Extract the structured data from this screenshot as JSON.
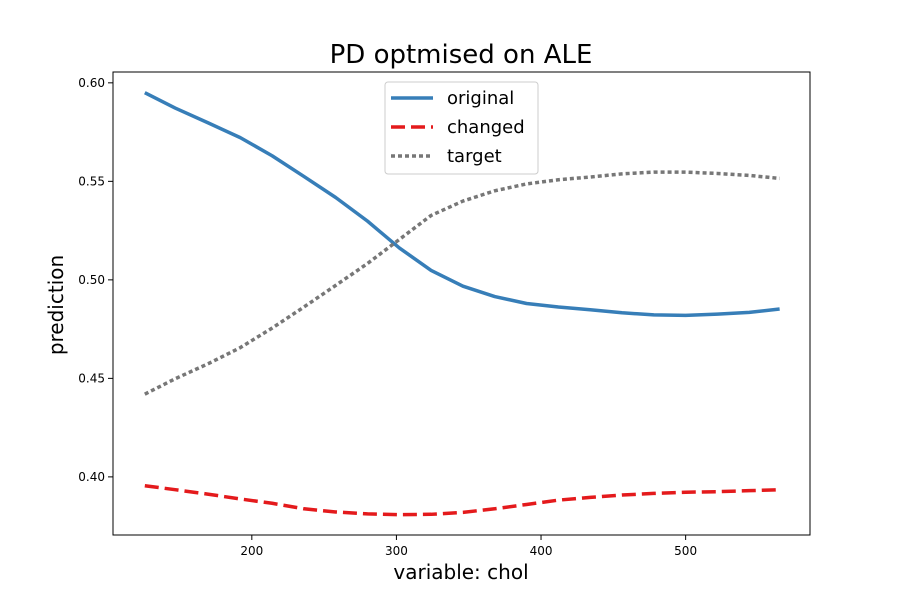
{
  "chart_data": {
    "type": "line",
    "title": "PD optmised on ALE",
    "xlabel": "variable: chol",
    "ylabel": "prediction",
    "xlim": [
      104,
      586
    ],
    "ylim": [
      0.3705,
      0.6055
    ],
    "xticks": [
      200,
      300,
      400,
      500
    ],
    "yticks": [
      0.4,
      0.45,
      0.5,
      0.55,
      0.6
    ],
    "xtick_labels": [
      "200",
      "300",
      "400",
      "500"
    ],
    "ytick_labels": [
      "0.40",
      "0.45",
      "0.50",
      "0.55",
      "0.60"
    ],
    "grid": false,
    "legend_position": "upper-center",
    "x": [
      126,
      147,
      170,
      192,
      214,
      236,
      258,
      280,
      302,
      324,
      346,
      368,
      390,
      412,
      434,
      456,
      478,
      500,
      522,
      544,
      565
    ],
    "series": [
      {
        "name": "original",
        "style": "solid",
        "color": "#377eb8",
        "values": [
          0.595,
          0.5872,
          0.5796,
          0.5722,
          0.563,
          0.5525,
          0.5418,
          0.5298,
          0.5162,
          0.5048,
          0.4968,
          0.4915,
          0.488,
          0.4862,
          0.4848,
          0.4833,
          0.4822,
          0.482,
          0.4826,
          0.4835,
          0.4852
        ]
      },
      {
        "name": "changed",
        "style": "dashed",
        "color": "#e41a1c",
        "values": [
          0.3955,
          0.3935,
          0.3912,
          0.3888,
          0.3866,
          0.3838,
          0.3822,
          0.3812,
          0.3808,
          0.381,
          0.382,
          0.3838,
          0.386,
          0.3882,
          0.3896,
          0.3908,
          0.3916,
          0.3922,
          0.3925,
          0.393,
          0.3935
        ]
      },
      {
        "name": "target",
        "style": "dotted",
        "color": "#777777",
        "values": [
          0.442,
          0.4498,
          0.4575,
          0.4656,
          0.4755,
          0.4862,
          0.4972,
          0.5083,
          0.5205,
          0.5327,
          0.54,
          0.5452,
          0.5487,
          0.5508,
          0.5522,
          0.5538,
          0.5547,
          0.5547,
          0.554,
          0.553,
          0.5515
        ]
      }
    ]
  }
}
